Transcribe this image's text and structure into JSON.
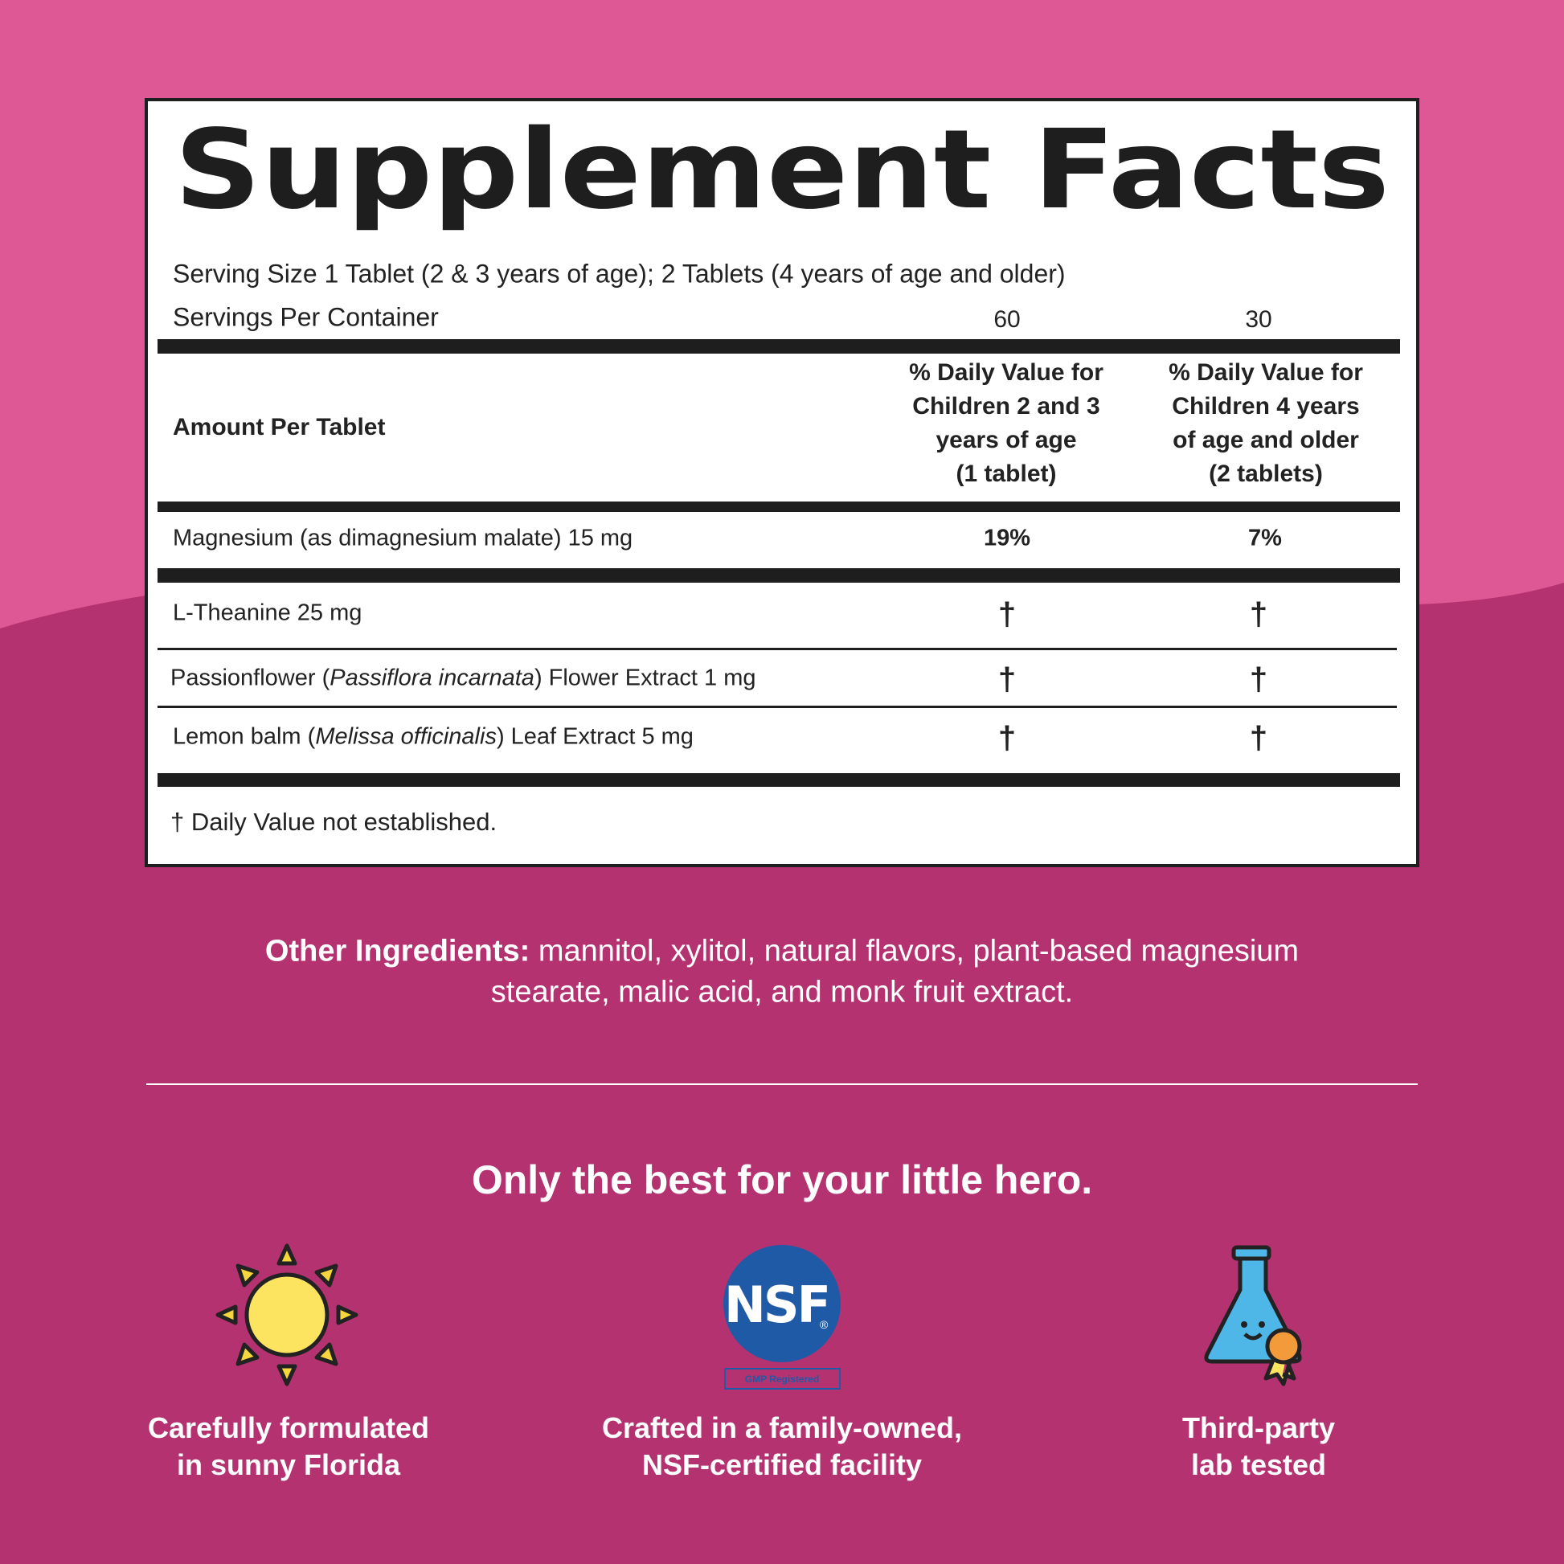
{
  "header": {
    "title": "Supplement Facts"
  },
  "serving": {
    "size": "Serving Size 1 Tablet (2 & 3 years of age); 2 Tablets (4 years of age and older)",
    "per_container_label": "Servings Per Container",
    "per_container": [
      "60",
      "30"
    ]
  },
  "columns": {
    "amount_label": "Amount Per Tablet",
    "dv_headers": [
      [
        "% Daily Value for",
        "Children 2 and 3",
        "years of age",
        "(1 tablet)"
      ],
      [
        "% Daily Value for",
        "Children 4 years",
        "of age and older",
        "(2 tablets)"
      ]
    ]
  },
  "rows": [
    {
      "name": [
        "Magnesium (as dimagnesium malate) 15 mg"
      ],
      "dv": [
        "19%",
        "7%"
      ]
    },
    {
      "name": [
        "L-Theanine 25 mg"
      ],
      "dv": [
        "†",
        "†"
      ]
    },
    {
      "name": [
        "Passionflower (",
        "Passiflora incarnata",
        ") Flower Extract 1 mg"
      ],
      "dv": [
        "†",
        "†"
      ]
    },
    {
      "name": [
        "Lemon balm (",
        "Melissa officinalis",
        ") Leaf Extract 5 mg"
      ],
      "dv": [
        "†",
        "†"
      ]
    }
  ],
  "footnote": "† Daily Value not established.",
  "other_ingredients": {
    "label": "Other Ingredients:",
    "text": [
      "mannitol, xylitol, natural flavors, plant-based magnesium",
      "stearate, malic acid, and monk fruit extract."
    ]
  },
  "tagline": "Only the best for your little hero.",
  "nsf_logo": {
    "mark": "NSF",
    "registered": "®",
    "badge": "GMP Registered"
  },
  "features": [
    {
      "caption": [
        "Carefully formulated",
        "in sunny Florida"
      ]
    },
    {
      "caption": [
        "Crafted in a family-owned,",
        "NSF-certified facility"
      ]
    },
    {
      "caption": [
        "Third-party",
        "lab tested"
      ]
    }
  ]
}
